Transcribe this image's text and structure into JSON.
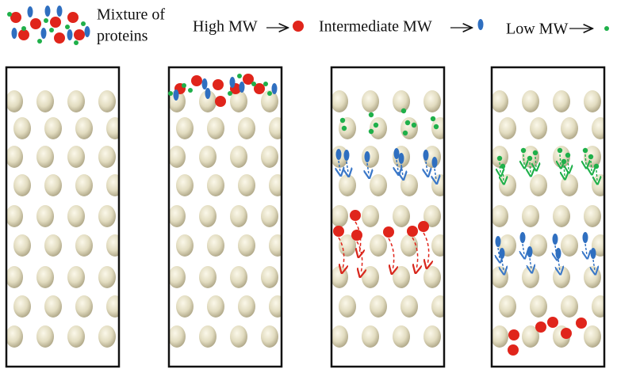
{
  "legend": {
    "mixture": [
      "Mixture of",
      "proteins"
    ],
    "high": "High MW",
    "intermediate": "Intermediate  MW",
    "low": "Low  MW"
  }
}
